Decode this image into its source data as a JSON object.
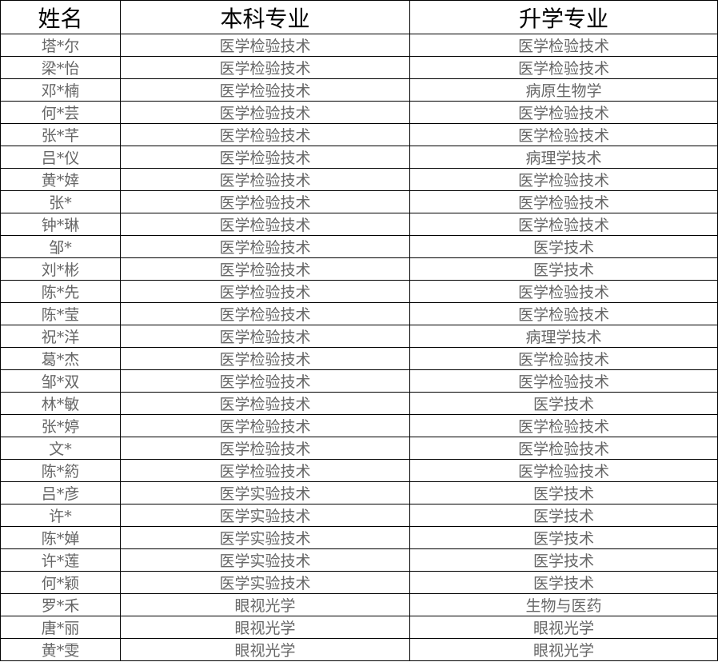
{
  "headers": [
    "姓名",
    "本科专业",
    "升学专业"
  ],
  "rows": [
    [
      "塔*尔",
      "医学检验技术",
      "医学检验技术"
    ],
    [
      "梁*怡",
      "医学检验技术",
      "医学检验技术"
    ],
    [
      "邓*楠",
      "医学检验技术",
      "病原生物学"
    ],
    [
      "何*芸",
      "医学检验技术",
      "医学检验技术"
    ],
    [
      "张*芊",
      "医学检验技术",
      "医学检验技术"
    ],
    [
      "吕*仪",
      "医学检验技术",
      "病理学技术"
    ],
    [
      "黄*婞",
      "医学检验技术",
      "医学检验技术"
    ],
    [
      "张*",
      "医学检验技术",
      "医学检验技术"
    ],
    [
      "钟*琳",
      "医学检验技术",
      "医学检验技术"
    ],
    [
      "邹*",
      "医学检验技术",
      "医学技术"
    ],
    [
      "刘*彬",
      "医学检验技术",
      "医学技术"
    ],
    [
      "陈*先",
      "医学检验技术",
      "医学检验技术"
    ],
    [
      "陈*莹",
      "医学检验技术",
      "医学检验技术"
    ],
    [
      "祝*洋",
      "医学检验技术",
      "病理学技术"
    ],
    [
      "葛*杰",
      "医学检验技术",
      "医学检验技术"
    ],
    [
      "邹*双",
      "医学检验技术",
      "医学检验技术"
    ],
    [
      "林*敏",
      "医学检验技术",
      "医学技术"
    ],
    [
      "张*婷",
      "医学检验技术",
      "医学检验技术"
    ],
    [
      "文*",
      "医学检验技术",
      "医学检验技术"
    ],
    [
      "陈*箹",
      "医学检验技术",
      "医学检验技术"
    ],
    [
      "吕*彦",
      "医学实验技术",
      "医学技术"
    ],
    [
      "许*",
      "医学实验技术",
      "医学技术"
    ],
    [
      "陈*婵",
      "医学实验技术",
      "医学技术"
    ],
    [
      "许*莲",
      "医学实验技术",
      "医学技术"
    ],
    [
      "何*颖",
      "医学实验技术",
      "医学技术"
    ],
    [
      "罗*禾",
      "眼视光学",
      "生物与医药"
    ],
    [
      "唐*丽",
      "眼视光学",
      "眼视光学"
    ],
    [
      "黄*雯",
      "眼视光学",
      "眼视光学"
    ]
  ]
}
